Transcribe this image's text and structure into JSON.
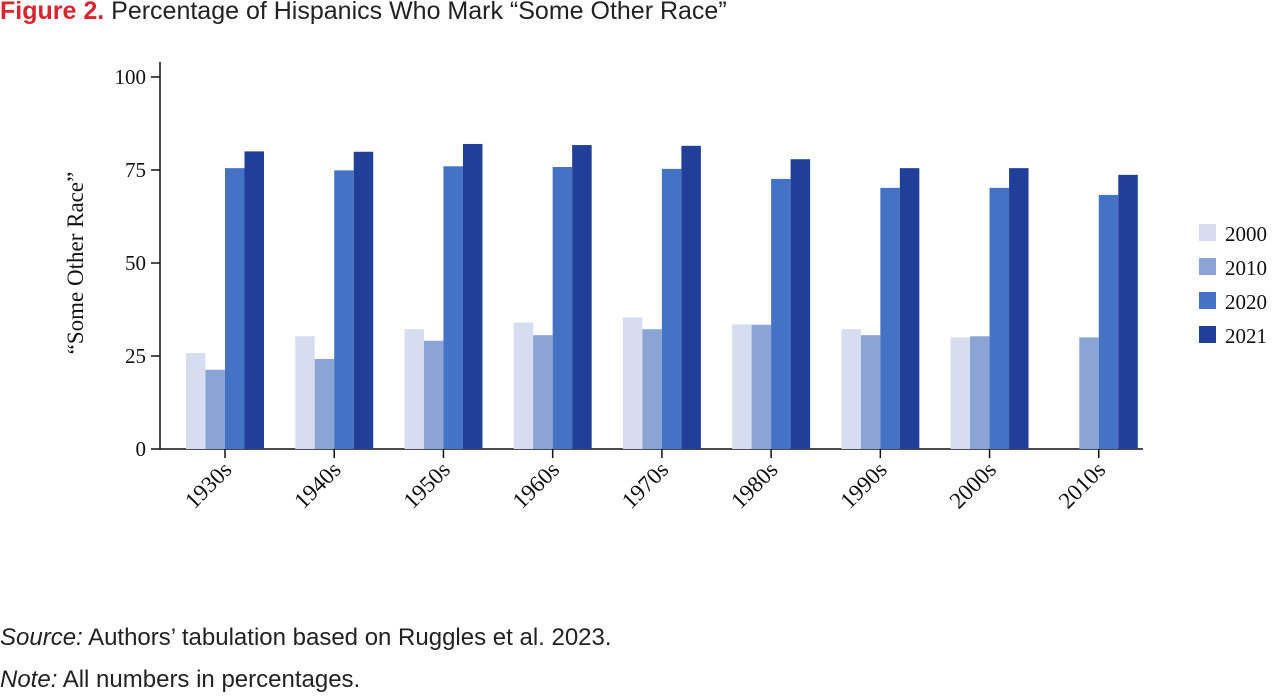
{
  "title": {
    "figure_label": "Figure 2.",
    "text": "Percentage of Hispanics Who Mark “Some Other Race”"
  },
  "footer": {
    "source_label": "Source:",
    "source_text": "Authors’ tabulation based on Ruggles et al. 2023.",
    "note_label": "Note:",
    "note_text": "All numbers in percentages."
  },
  "colors": {
    "2000": "#d7ddf0",
    "2010": "#8aa4d6",
    "2020": "#4472c4",
    "2021": "#213f99",
    "title_accent": "#d9252f"
  },
  "chart_data": {
    "type": "bar",
    "ylabel": "“Some Other Race”",
    "xlabel": "",
    "ylim": [
      0,
      100
    ],
    "yticks": [
      0,
      25,
      50,
      75,
      100
    ],
    "legend_position": "right",
    "grid": false,
    "categories": [
      "1930s",
      "1940s",
      "1950s",
      "1960s",
      "1970s",
      "1980s",
      "1990s",
      "2000s",
      "2010s"
    ],
    "series": [
      {
        "name": "2000",
        "color": "#d7ddf0",
        "values": [
          25.8,
          30.3,
          32.2,
          34.0,
          35.4,
          33.5,
          32.2,
          30.0,
          null
        ]
      },
      {
        "name": "2010",
        "color": "#8aa4d6",
        "values": [
          21.3,
          24.2,
          29.1,
          30.6,
          32.2,
          33.4,
          30.6,
          30.3,
          30.0
        ]
      },
      {
        "name": "2020",
        "color": "#4472c4",
        "values": [
          75.5,
          74.9,
          76.0,
          75.8,
          75.3,
          72.6,
          70.2,
          70.2,
          68.3
        ]
      },
      {
        "name": "2021",
        "color": "#213f99",
        "values": [
          80.0,
          79.9,
          82.0,
          81.7,
          81.5,
          77.9,
          75.5,
          75.5,
          73.7
        ]
      }
    ]
  }
}
